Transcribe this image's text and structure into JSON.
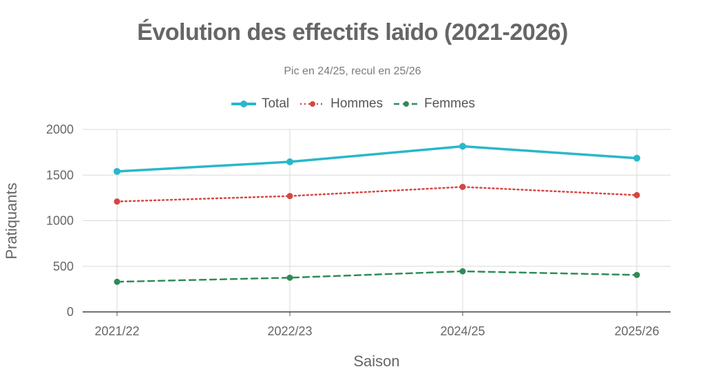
{
  "chart_data": {
    "type": "line",
    "title": "Évolution des effectifs laïdo (2021-2026)",
    "subtitle": "Pic en 24/25, recul en 25/26",
    "xlabel": "Saison",
    "ylabel": "Pratiquants",
    "categories": [
      "2021/22",
      "2022/23",
      "2024/25",
      "2025/26"
    ],
    "ylim": [
      0,
      2000
    ],
    "yticks": [
      0,
      500,
      1000,
      1500,
      2000
    ],
    "grid": true,
    "legend_position": "top-center",
    "series": [
      {
        "name": "Total",
        "values": [
          1540,
          1645,
          1815,
          1685
        ],
        "color": "#2ab7ca",
        "style": "solid"
      },
      {
        "name": "Hommes",
        "values": [
          1210,
          1270,
          1370,
          1280
        ],
        "color": "#d64541",
        "style": "dotted"
      },
      {
        "name": "Femmes",
        "values": [
          330,
          375,
          445,
          405
        ],
        "color": "#2e8b57",
        "style": "dashed"
      }
    ]
  }
}
